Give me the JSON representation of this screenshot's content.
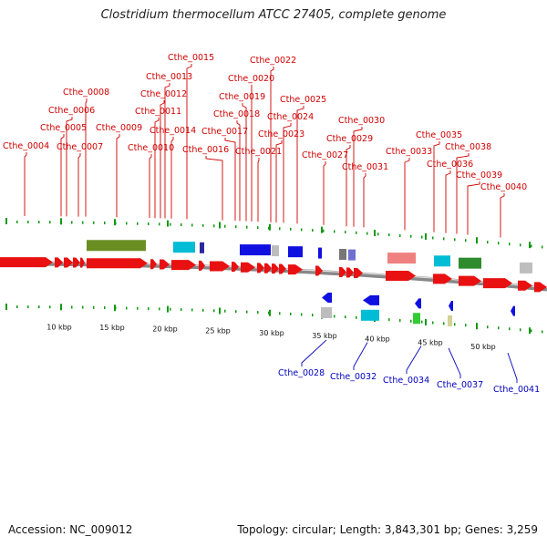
{
  "title": "Clostridium thermocellum ATCC 27405, complete genome",
  "footer": {
    "accession": "Accession: NC_009012",
    "summary": "Topology: circular; Length: 3,843,301 bp; Genes: 3,259"
  },
  "colors": {
    "forward_label": "#d00000",
    "reverse_label": "#0000c0",
    "cds_forward": "#e81010",
    "cds_reverse": "#1010e0",
    "backbone": "#888888",
    "tick": "#119911"
  },
  "kbp_ticks": [
    "10 kbp",
    "15 kbp",
    "20 kbp",
    "25 kbp",
    "30 kbp",
    "35 kbp",
    "40 kbp",
    "45 kbp",
    "50 kbp"
  ],
  "forward_labels": [
    "Cthe_0004",
    "Cthe_0005",
    "Cthe_0006",
    "Cthe_0007",
    "Cthe_0008",
    "Cthe_0009",
    "Cthe_0010",
    "Cthe_0011",
    "Cthe_0012",
    "Cthe_0013",
    "Cthe_0014",
    "Cthe_0015",
    "Cthe_0016",
    "Cthe_0017",
    "Cthe_0018",
    "Cthe_0019",
    "Cthe_0020",
    "Cthe_0021",
    "Cthe_0022",
    "Cthe_0023",
    "Cthe_0024",
    "Cthe_0025",
    "Cthe_0027",
    "Cthe_0029",
    "Cthe_0030",
    "Cthe_0031",
    "Cthe_0033",
    "Cthe_0035",
    "Cthe_0036",
    "Cthe_0038",
    "Cthe_0039",
    "Cthe_0040"
  ],
  "reverse_labels": [
    "Cthe_0028",
    "Cthe_0032",
    "Cthe_0034",
    "Cthe_0037",
    "Cthe_0041"
  ]
}
